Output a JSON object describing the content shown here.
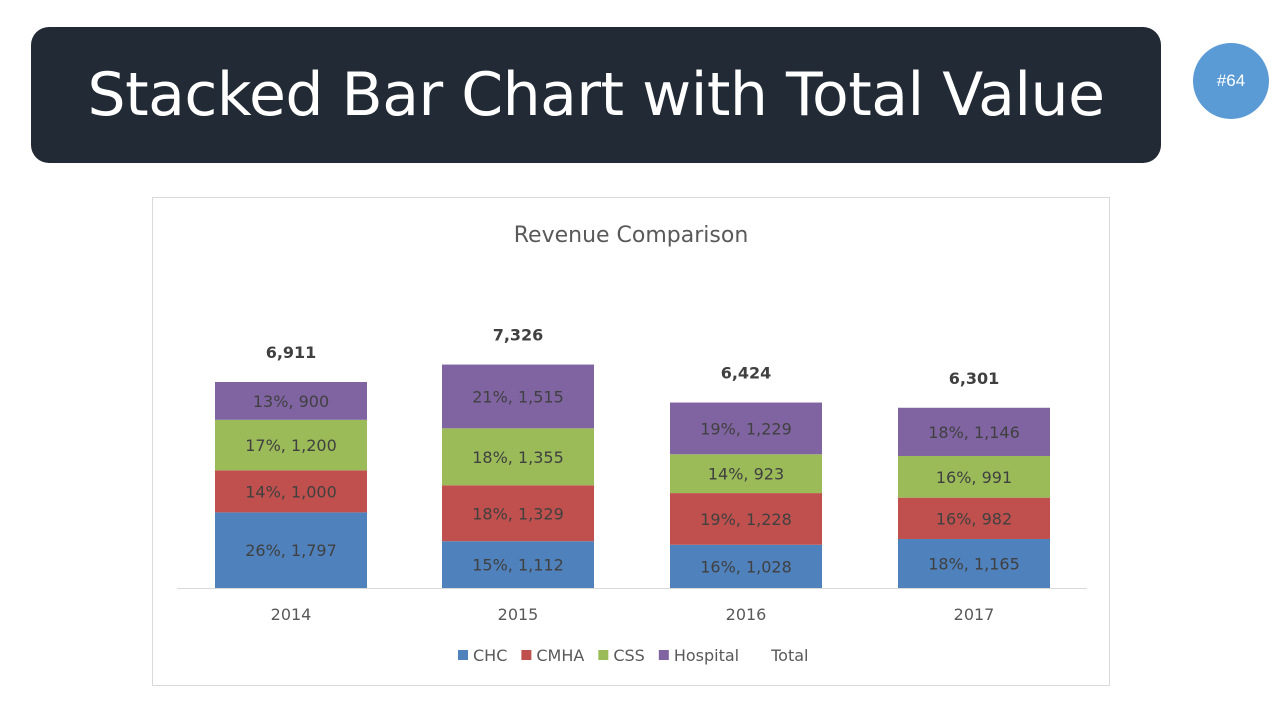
{
  "banner": {
    "title": "Stacked Bar Chart with Total Value",
    "badge": "#64"
  },
  "chart_data": {
    "type": "bar",
    "stacked": true,
    "title": "Revenue Comparison",
    "categories": [
      "2014",
      "2015",
      "2016",
      "2017"
    ],
    "ylim": [
      0,
      7000
    ],
    "grid": false,
    "legend_position": "bottom",
    "series": [
      {
        "name": "CHC",
        "color": "#4f81bd",
        "values": [
          1797,
          1112,
          1028,
          1165
        ],
        "labels": [
          "26%, 1,797",
          "15%, 1,112",
          "16%, 1,028",
          "18%, 1,165"
        ]
      },
      {
        "name": "CMHA",
        "color": "#c0504d",
        "values": [
          1000,
          1329,
          1228,
          982
        ],
        "labels": [
          "14%, 1,000",
          "18%, 1,329",
          "19%, 1,228",
          "16%, 982"
        ]
      },
      {
        "name": "CSS",
        "color": "#9bbb59",
        "values": [
          1200,
          1355,
          923,
          991
        ],
        "labels": [
          "17%, 1,200",
          "18%, 1,355",
          "14%, 923",
          "16%, 991"
        ]
      },
      {
        "name": "Hospital",
        "color": "#8064a2",
        "values": [
          900,
          1515,
          1229,
          1146
        ],
        "labels": [
          "13%, 900",
          "21%, 1,515",
          "19%, 1,229",
          "18%, 1,146"
        ]
      }
    ],
    "total": {
      "name": "Total",
      "values": [
        6911,
        7326,
        6424,
        6301
      ],
      "labels": [
        "6,911",
        "7,326",
        "6,424",
        "6,301"
      ]
    }
  }
}
